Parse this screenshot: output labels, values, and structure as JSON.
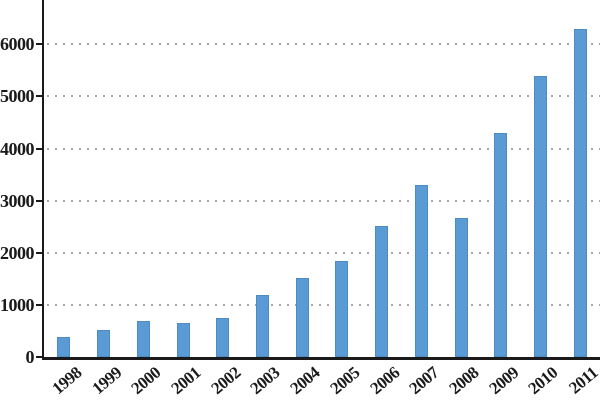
{
  "chart_data": {
    "type": "bar",
    "title": "",
    "xlabel": "",
    "ylabel": "",
    "categories": [
      "1998",
      "1999",
      "2000",
      "2001",
      "2002",
      "2003",
      "2004",
      "2005",
      "2006",
      "2007",
      "2008",
      "2009",
      "2010",
      "2011"
    ],
    "values": [
      380,
      520,
      690,
      660,
      740,
      1190,
      1510,
      1840,
      2520,
      3310,
      2660,
      4290,
      5390,
      6300
    ],
    "yticks": [
      0,
      1000,
      2000,
      3000,
      4000,
      5000,
      6000
    ],
    "ytick_labels": [
      "0",
      "1000",
      "2000",
      "3000",
      "4000",
      "5000",
      "6000"
    ],
    "ylim": [
      0,
      6850
    ],
    "grid": "horizontal-dotted",
    "legend_position": "none",
    "bar_color": "#5b9bd5",
    "axis_color": "#1a1a1a",
    "gridline_color": "#a6a6a6",
    "text_color": "#1a1a1a",
    "background_color": "#ffffff"
  }
}
